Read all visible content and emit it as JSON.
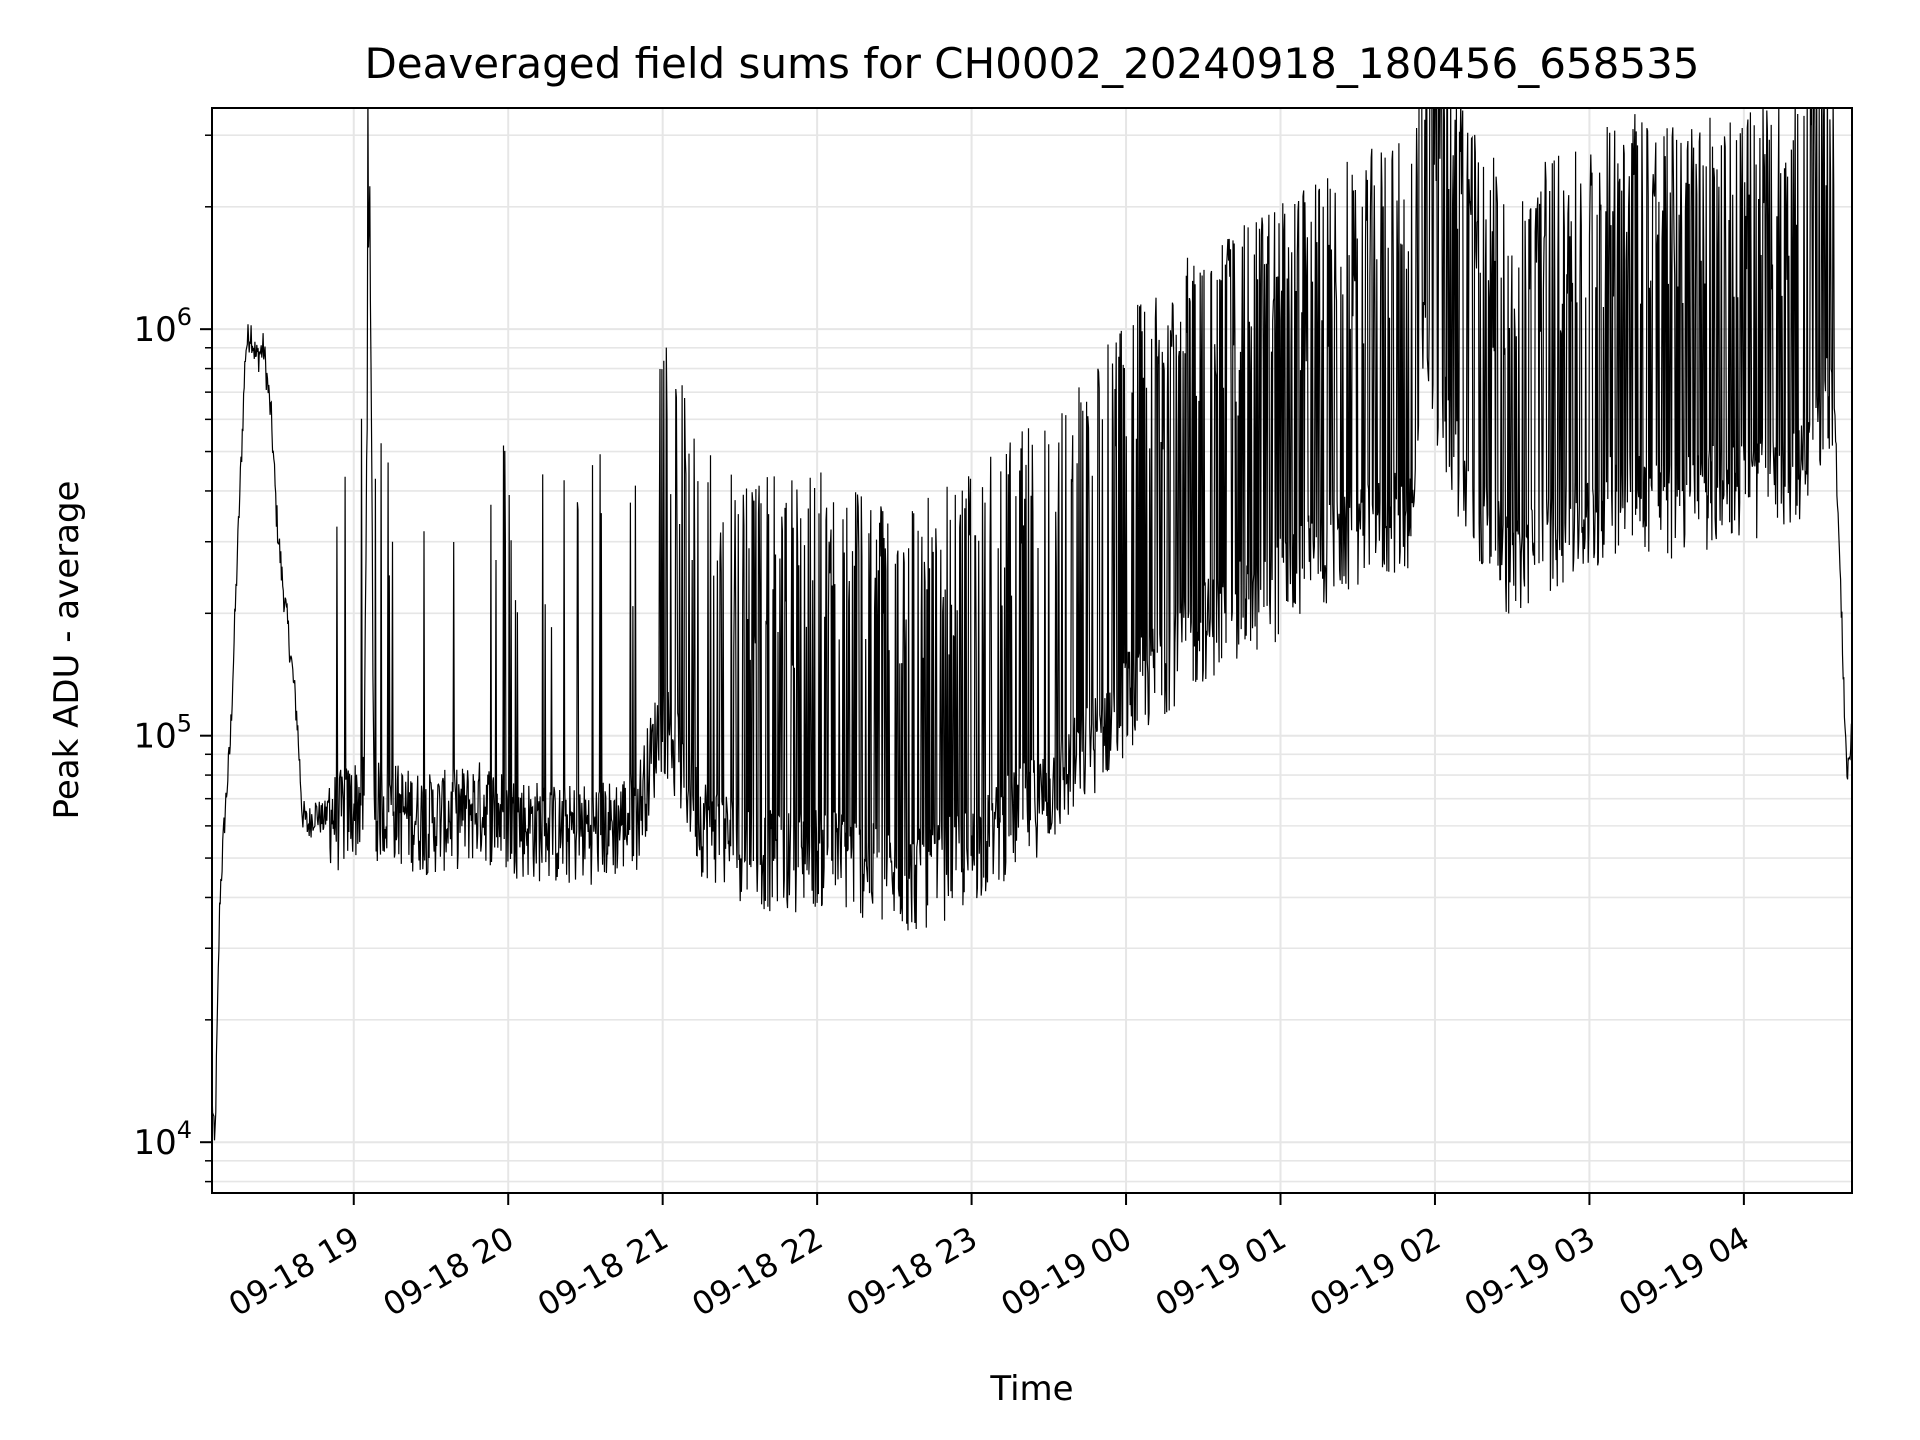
{
  "chart_data": {
    "type": "line",
    "title": "Deaveraged field sums for CH0002_20240918_180456_658535",
    "xlabel": "Time",
    "ylabel": "Peak ADU - average",
    "yscale": "log",
    "ylim": [
      7500,
      3500000
    ],
    "xlim": [
      "2024-09-18 18:04:56",
      "2024-09-19 04:42:00"
    ],
    "grid": true,
    "legend": "none",
    "line_color": "#000000",
    "x_ticks": [
      {
        "t": "2024-09-18 19:00",
        "label": "09-18 19"
      },
      {
        "t": "2024-09-18 20:00",
        "label": "09-18 20"
      },
      {
        "t": "2024-09-18 21:00",
        "label": "09-18 21"
      },
      {
        "t": "2024-09-18 22:00",
        "label": "09-18 22"
      },
      {
        "t": "2024-09-18 23:00",
        "label": "09-18 23"
      },
      {
        "t": "2024-09-19 00:00",
        "label": "09-19 00"
      },
      {
        "t": "2024-09-19 01:00",
        "label": "09-19 01"
      },
      {
        "t": "2024-09-19 02:00",
        "label": "09-19 02"
      },
      {
        "t": "2024-09-19 03:00",
        "label": "09-19 03"
      },
      {
        "t": "2024-09-19 04:00",
        "label": "09-19 04"
      }
    ],
    "y_ticks": [
      {
        "value": 10000,
        "base": "10",
        "exp": "4"
      },
      {
        "value": 100000,
        "base": "10",
        "exp": "5"
      },
      {
        "value": 1000000,
        "base": "10",
        "exp": "6"
      }
    ],
    "series": [
      {
        "x": [
          "2024-09-18 18:05",
          "2024-09-18 18:06",
          "2024-09-18 18:08",
          "2024-09-18 18:10",
          "2024-09-18 18:12",
          "2024-09-18 18:15",
          "2024-09-18 18:18",
          "2024-09-18 18:20",
          "2024-09-18 18:22",
          "2024-09-18 18:25",
          "2024-09-18 18:28",
          "2024-09-18 18:30",
          "2024-09-18 18:32",
          "2024-09-18 18:35",
          "2024-09-18 18:38",
          "2024-09-18 18:40",
          "2024-09-18 18:42",
          "2024-09-18 18:45",
          "2024-09-18 18:48",
          "2024-09-18 18:50",
          "2024-09-18 18:53",
          "2024-09-18 18:56",
          "2024-09-18 19:00",
          "2024-09-18 19:04",
          "2024-09-18 19:06",
          "2024-09-18 19:08",
          "2024-09-18 19:10",
          "2024-09-18 19:15",
          "2024-09-18 19:20",
          "2024-09-18 19:30",
          "2024-09-18 19:40",
          "2024-09-18 19:50",
          "2024-09-18 20:00",
          "2024-09-18 20:10",
          "2024-09-18 20:20",
          "2024-09-18 20:30",
          "2024-09-18 20:40",
          "2024-09-18 20:50",
          "2024-09-18 21:00",
          "2024-09-18 21:15",
          "2024-09-18 21:30",
          "2024-09-18 21:45",
          "2024-09-18 22:00",
          "2024-09-18 22:15",
          "2024-09-18 22:30",
          "2024-09-18 22:45",
          "2024-09-18 23:00",
          "2024-09-18 23:15",
          "2024-09-18 23:30",
          "2024-09-18 23:45",
          "2024-09-19 00:00",
          "2024-09-19 00:15",
          "2024-09-19 00:30",
          "2024-09-19 00:45",
          "2024-09-19 01:00",
          "2024-09-19 01:15",
          "2024-09-19 01:30",
          "2024-09-19 01:45",
          "2024-09-19 01:52",
          "2024-09-19 01:55",
          "2024-09-19 02:00",
          "2024-09-19 02:15",
          "2024-09-19 02:30",
          "2024-09-19 02:45",
          "2024-09-19 03:00",
          "2024-09-19 03:15",
          "2024-09-19 03:30",
          "2024-09-19 03:45",
          "2024-09-19 04:00",
          "2024-09-19 04:15",
          "2024-09-19 04:25",
          "2024-09-19 04:30",
          "2024-09-19 04:35",
          "2024-09-19 04:40",
          "2024-09-19 04:42"
        ],
        "y": [
          13000,
          9500,
          40000,
          65000,
          95000,
          300000,
          900000,
          1000000,
          850000,
          900000,
          600000,
          350000,
          250000,
          170000,
          110000,
          65000,
          60000,
          65000,
          62000,
          65000,
          60000,
          62000,
          65000,
          68000,
          2500000,
          60000,
          65000,
          65000,
          62000,
          60000,
          62000,
          65000,
          60000,
          58000,
          56000,
          57000,
          58000,
          62000,
          110000,
          60000,
          52000,
          48000,
          50000,
          48000,
          42000,
          45000,
          50000,
          60000,
          70000,
          90000,
          120000,
          150000,
          180000,
          200000,
          230000,
          270000,
          300000,
          330000,
          340000,
          900000,
          700000,
          350000,
          250000,
          300000,
          320000,
          400000,
          350000,
          380000,
          400000,
          400000,
          450000,
          600000,
          700000,
          80000,
          100000
        ],
        "spike_range": {
          "low": [
            40000,
            150000
          ],
          "high": [
            400000,
            700000
          ]
        }
      }
    ]
  }
}
